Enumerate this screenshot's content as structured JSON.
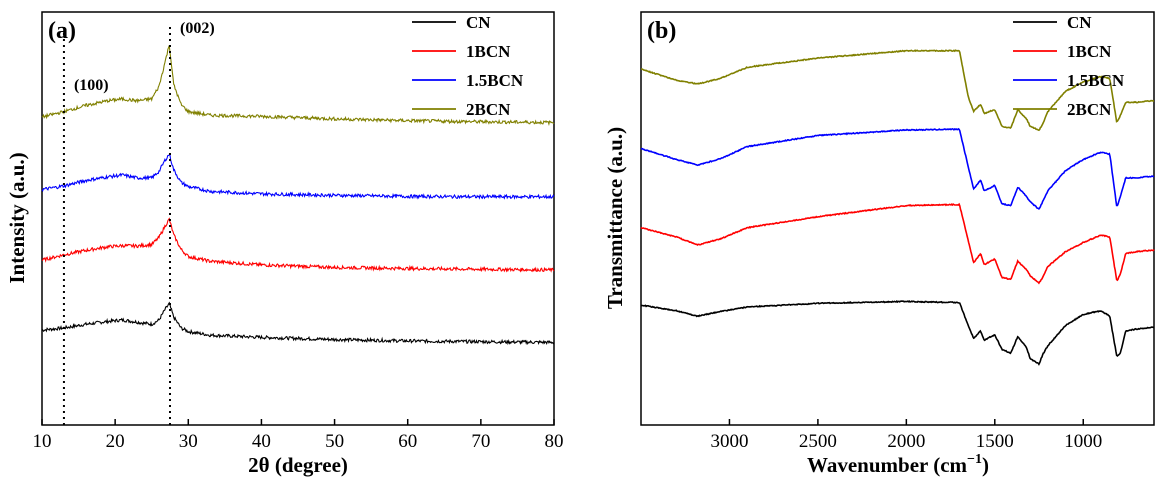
{
  "chart_data": [
    {
      "type": "line",
      "panel_label": "(a)",
      "xlabel": "2θ (degree)",
      "ylabel": "Intensity (a.u.)",
      "xlim": [
        10,
        80
      ],
      "xticks": [
        10,
        20,
        30,
        40,
        50,
        60,
        70,
        80
      ],
      "y_ticks_shown": false,
      "legend_placement": "top-right",
      "annotations": [
        {
          "text": "(100)",
          "x": 13.0
        },
        {
          "text": "(002)",
          "x": 27.5
        }
      ],
      "reference_lines": [
        13.0,
        27.5
      ],
      "series": [
        {
          "name": "CN",
          "color": "#000000",
          "x": [
            10,
            13,
            16,
            19,
            21,
            23,
            25,
            26,
            26.8,
            27.4,
            28.0,
            29,
            30,
            33,
            40,
            50,
            60,
            70,
            80
          ],
          "y": [
            0.42,
            0.48,
            0.58,
            0.66,
            0.7,
            0.64,
            0.58,
            0.7,
            0.98,
            1.15,
            0.78,
            0.48,
            0.38,
            0.28,
            0.22,
            0.16,
            0.12,
            0.1,
            0.08
          ]
        },
        {
          "name": "1BCN",
          "color": "#ff0000",
          "x": [
            10,
            13,
            16,
            19,
            21,
            23,
            25,
            26,
            26.8,
            27.4,
            28.0,
            29,
            30,
            33,
            40,
            50,
            60,
            70,
            80
          ],
          "y": [
            2.35,
            2.5,
            2.62,
            2.72,
            2.75,
            2.74,
            2.78,
            2.98,
            3.28,
            3.48,
            3.05,
            2.65,
            2.45,
            2.32,
            2.22,
            2.15,
            2.12,
            2.1,
            2.08
          ]
        },
        {
          "name": "1.5BCN",
          "color": "#0000ff",
          "x": [
            10,
            13,
            16,
            19,
            21,
            23,
            25,
            26,
            26.8,
            27.4,
            28.0,
            29,
            30,
            33,
            40,
            50,
            60,
            70,
            80
          ],
          "y": [
            4.3,
            4.4,
            4.55,
            4.65,
            4.7,
            4.62,
            4.62,
            4.8,
            5.1,
            5.28,
            4.85,
            4.5,
            4.38,
            4.25,
            4.18,
            4.14,
            4.11,
            4.1,
            4.1
          ]
        },
        {
          "name": "2BCN",
          "color": "#808000",
          "x": [
            10,
            13,
            16,
            19,
            21,
            23,
            25,
            26,
            26.8,
            27.4,
            28.0,
            29,
            30,
            33,
            40,
            50,
            60,
            70,
            80
          ],
          "y": [
            6.3,
            6.45,
            6.62,
            6.75,
            6.8,
            6.75,
            6.8,
            7.15,
            7.8,
            8.3,
            7.2,
            6.65,
            6.45,
            6.35,
            6.32,
            6.25,
            6.2,
            6.17,
            6.15
          ]
        }
      ]
    },
    {
      "type": "line",
      "panel_label": "(b)",
      "xlabel": "Wavenumber (cm",
      "xlabel_sup": "−1",
      "xlabel_end": ")",
      "ylabel": "Transmittance (a.u.)",
      "xlim": [
        3500,
        600
      ],
      "xticks": [
        3000,
        2500,
        2000,
        1500,
        1000
      ],
      "x_reversed": true,
      "y_ticks_shown": false,
      "legend_placement": "top-right",
      "series": [
        {
          "name": "CN",
          "color": "#000000",
          "x": [
            3500,
            3300,
            3180,
            3050,
            2900,
            2500,
            2000,
            1700,
            1650,
            1620,
            1580,
            1560,
            1500,
            1460,
            1410,
            1370,
            1320,
            1300,
            1250,
            1230,
            1200,
            1100,
            1000,
            900,
            850,
            810,
            790,
            760,
            700,
            600
          ],
          "y": [
            1.65,
            1.5,
            1.35,
            1.48,
            1.6,
            1.7,
            1.75,
            1.72,
            1.1,
            0.75,
            0.95,
            0.7,
            0.85,
            0.45,
            0.35,
            0.8,
            0.5,
            0.2,
            0.05,
            0.3,
            0.55,
            1.1,
            1.4,
            1.5,
            1.35,
            0.25,
            0.35,
            0.95,
            1.0,
            1.05
          ]
        },
        {
          "name": "1BCN",
          "color": "#ff0000",
          "x": [
            3500,
            3300,
            3180,
            3050,
            2900,
            2500,
            2000,
            1700,
            1650,
            1620,
            1580,
            1560,
            1500,
            1460,
            1410,
            1370,
            1320,
            1300,
            1250,
            1230,
            1200,
            1100,
            1000,
            900,
            850,
            810,
            790,
            760,
            700,
            600
          ],
          "y": [
            3.75,
            3.5,
            3.28,
            3.45,
            3.75,
            4.05,
            4.35,
            4.38,
            3.4,
            2.8,
            3.05,
            2.75,
            2.9,
            2.4,
            2.35,
            2.85,
            2.6,
            2.45,
            2.25,
            2.4,
            2.7,
            3.1,
            3.35,
            3.55,
            3.5,
            2.3,
            2.5,
            3.05,
            3.1,
            3.15
          ]
        },
        {
          "name": "1.5BCN",
          "color": "#0000ff",
          "x": [
            3500,
            3300,
            3180,
            3050,
            2900,
            2500,
            2000,
            1700,
            1650,
            1620,
            1580,
            1560,
            1500,
            1460,
            1410,
            1370,
            1320,
            1300,
            1250,
            1230,
            1200,
            1100,
            1000,
            900,
            850,
            810,
            790,
            760,
            700,
            600
          ],
          "y": [
            5.9,
            5.6,
            5.45,
            5.62,
            5.95,
            6.25,
            6.4,
            6.42,
            5.4,
            4.8,
            5.05,
            4.75,
            4.9,
            4.4,
            4.35,
            4.85,
            4.6,
            4.45,
            4.25,
            4.45,
            4.75,
            5.3,
            5.6,
            5.8,
            5.75,
            4.3,
            4.6,
            5.1,
            5.1,
            5.15
          ]
        },
        {
          "name": "2BCN",
          "color": "#808000",
          "x": [
            3500,
            3300,
            3180,
            3050,
            2900,
            2500,
            2000,
            1700,
            1650,
            1620,
            1580,
            1560,
            1500,
            1460,
            1410,
            1370,
            1320,
            1300,
            1250,
            1230,
            1200,
            1100,
            1000,
            900,
            850,
            810,
            790,
            760,
            700,
            600
          ],
          "y": [
            8.05,
            7.75,
            7.65,
            7.8,
            8.1,
            8.35,
            8.55,
            8.55,
            7.3,
            6.9,
            7.1,
            6.85,
            6.95,
            6.5,
            6.45,
            6.95,
            6.7,
            6.5,
            6.4,
            6.55,
            6.9,
            7.45,
            7.7,
            7.85,
            7.8,
            6.6,
            6.8,
            7.15,
            7.15,
            7.2
          ]
        }
      ]
    }
  ]
}
